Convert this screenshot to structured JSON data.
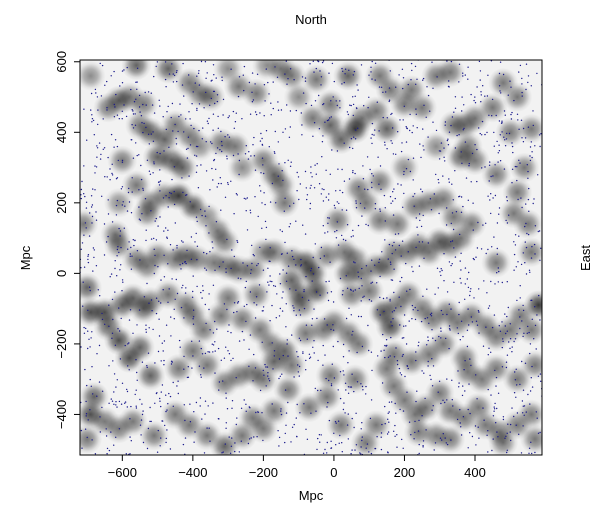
{
  "chart_data": {
    "type": "scatter",
    "title": "North",
    "right_label": "East",
    "xlabel": "Mpc",
    "ylabel": "Mpc",
    "xlim": [
      -720,
      590
    ],
    "ylim": [
      -515,
      605
    ],
    "xticks": [
      -600,
      -400,
      -200,
      0,
      200,
      400
    ],
    "yticks": [
      -400,
      -200,
      0,
      200,
      400,
      600
    ],
    "grid": false,
    "colors": {
      "points": "#1a1a8c",
      "smoothing": "#000000",
      "background": "#f2f2f2"
    },
    "clusters": [
      {
        "x": -690,
        "y": 560,
        "w": 0.5
      },
      {
        "x": -640,
        "y": 470,
        "w": 0.6
      },
      {
        "x": -610,
        "y": 490,
        "w": 0.7
      },
      {
        "x": -580,
        "y": 500,
        "w": 0.6
      },
      {
        "x": -560,
        "y": 590,
        "w": 0.7
      },
      {
        "x": -540,
        "y": 480,
        "w": 0.6
      },
      {
        "x": -550,
        "y": 420,
        "w": 0.6
      },
      {
        "x": -470,
        "y": 580,
        "w": 0.7
      },
      {
        "x": -410,
        "y": 540,
        "w": 0.6
      },
      {
        "x": -380,
        "y": 510,
        "w": 0.6
      },
      {
        "x": -350,
        "y": 500,
        "w": 0.6
      },
      {
        "x": -300,
        "y": 580,
        "w": 0.5
      },
      {
        "x": -270,
        "y": 530,
        "w": 0.6
      },
      {
        "x": -220,
        "y": 510,
        "w": 0.6
      },
      {
        "x": -190,
        "y": 590,
        "w": 0.5
      },
      {
        "x": -150,
        "y": 580,
        "w": 0.6
      },
      {
        "x": -120,
        "y": 560,
        "w": 0.6
      },
      {
        "x": -100,
        "y": 500,
        "w": 0.5
      },
      {
        "x": -50,
        "y": 550,
        "w": 0.6
      },
      {
        "x": -60,
        "y": 440,
        "w": 0.6
      },
      {
        "x": -10,
        "y": 480,
        "w": 0.6
      },
      {
        "x": -10,
        "y": 420,
        "w": 0.7
      },
      {
        "x": 20,
        "y": 380,
        "w": 0.7
      },
      {
        "x": 40,
        "y": 560,
        "w": 0.7
      },
      {
        "x": 80,
        "y": 440,
        "w": 0.6
      },
      {
        "x": 60,
        "y": 410,
        "w": 0.9
      },
      {
        "x": 130,
        "y": 560,
        "w": 0.6
      },
      {
        "x": 120,
        "y": 460,
        "w": 0.6
      },
      {
        "x": 150,
        "y": 410,
        "w": 0.7
      },
      {
        "x": 160,
        "y": 520,
        "w": 0.6
      },
      {
        "x": 200,
        "y": 480,
        "w": 0.6
      },
      {
        "x": 220,
        "y": 520,
        "w": 0.6
      },
      {
        "x": 250,
        "y": 470,
        "w": 0.6
      },
      {
        "x": 290,
        "y": 560,
        "w": 0.6
      },
      {
        "x": 330,
        "y": 570,
        "w": 0.6
      },
      {
        "x": 340,
        "y": 420,
        "w": 0.6
      },
      {
        "x": 370,
        "y": 420,
        "w": 0.6
      },
      {
        "x": 400,
        "y": 440,
        "w": 0.6
      },
      {
        "x": 450,
        "y": 470,
        "w": 0.6
      },
      {
        "x": 480,
        "y": 540,
        "w": 0.6
      },
      {
        "x": 520,
        "y": 500,
        "w": 0.6
      },
      {
        "x": 560,
        "y": 410,
        "w": 0.6
      },
      {
        "x": 500,
        "y": 400,
        "w": 0.6
      },
      {
        "x": 540,
        "y": 300,
        "w": 0.6
      },
      {
        "x": -520,
        "y": 400,
        "w": 0.7
      },
      {
        "x": -480,
        "y": 380,
        "w": 0.7
      },
      {
        "x": -450,
        "y": 420,
        "w": 0.6
      },
      {
        "x": -410,
        "y": 390,
        "w": 0.6
      },
      {
        "x": -600,
        "y": 320,
        "w": 0.6
      },
      {
        "x": -560,
        "y": 250,
        "w": 0.6
      },
      {
        "x": -500,
        "y": 330,
        "w": 0.7
      },
      {
        "x": -460,
        "y": 320,
        "w": 0.7
      },
      {
        "x": -430,
        "y": 300,
        "w": 0.7
      },
      {
        "x": -380,
        "y": 360,
        "w": 0.5
      },
      {
        "x": -320,
        "y": 370,
        "w": 0.6
      },
      {
        "x": -280,
        "y": 360,
        "w": 0.6
      },
      {
        "x": -260,
        "y": 300,
        "w": 0.5
      },
      {
        "x": -200,
        "y": 320,
        "w": 0.6
      },
      {
        "x": -170,
        "y": 280,
        "w": 0.7
      },
      {
        "x": -150,
        "y": 250,
        "w": 0.6
      },
      {
        "x": -140,
        "y": 200,
        "w": 0.6
      },
      {
        "x": -520,
        "y": 200,
        "w": 0.6
      },
      {
        "x": -480,
        "y": 220,
        "w": 0.6
      },
      {
        "x": -440,
        "y": 220,
        "w": 0.9
      },
      {
        "x": -400,
        "y": 190,
        "w": 0.8
      },
      {
        "x": -530,
        "y": 170,
        "w": 0.6
      },
      {
        "x": -360,
        "y": 160,
        "w": 0.5
      },
      {
        "x": -330,
        "y": 120,
        "w": 0.6
      },
      {
        "x": -310,
        "y": 90,
        "w": 0.6
      },
      {
        "x": -710,
        "y": 140,
        "w": 0.6
      },
      {
        "x": -620,
        "y": 110,
        "w": 0.6
      },
      {
        "x": -610,
        "y": 80,
        "w": 0.6
      },
      {
        "x": -560,
        "y": 40,
        "w": 0.6
      },
      {
        "x": -530,
        "y": 20,
        "w": 0.6
      },
      {
        "x": -500,
        "y": 50,
        "w": 0.6
      },
      {
        "x": -450,
        "y": 40,
        "w": 0.6
      },
      {
        "x": -420,
        "y": 50,
        "w": 0.6
      },
      {
        "x": -390,
        "y": 40,
        "w": 0.6
      },
      {
        "x": -340,
        "y": 30,
        "w": 0.6
      },
      {
        "x": -300,
        "y": 20,
        "w": 0.6
      },
      {
        "x": -270,
        "y": 10,
        "w": 0.6
      },
      {
        "x": -230,
        "y": 10,
        "w": 0.6
      },
      {
        "x": -200,
        "y": 60,
        "w": 0.5
      },
      {
        "x": -170,
        "y": 60,
        "w": 0.6
      },
      {
        "x": -120,
        "y": 40,
        "w": 0.6
      },
      {
        "x": -80,
        "y": 30,
        "w": 0.8
      },
      {
        "x": -60,
        "y": 0,
        "w": 0.8
      },
      {
        "x": -50,
        "y": -50,
        "w": 0.8
      },
      {
        "x": -100,
        "y": -60,
        "w": 0.7
      },
      {
        "x": -20,
        "y": 50,
        "w": 0.6
      },
      {
        "x": 30,
        "y": 60,
        "w": 0.6
      },
      {
        "x": 60,
        "y": 40,
        "w": 0.6
      },
      {
        "x": 40,
        "y": 0,
        "w": 0.7
      },
      {
        "x": 80,
        "y": 0,
        "w": 0.6
      },
      {
        "x": 120,
        "y": 20,
        "w": 0.6
      },
      {
        "x": 150,
        "y": 20,
        "w": 0.6
      },
      {
        "x": 170,
        "y": 60,
        "w": 0.6
      },
      {
        "x": 210,
        "y": 60,
        "w": 0.6
      },
      {
        "x": 240,
        "y": 80,
        "w": 0.6
      },
      {
        "x": 270,
        "y": 60,
        "w": 0.6
      },
      {
        "x": 300,
        "y": 90,
        "w": 0.7
      },
      {
        "x": 330,
        "y": 80,
        "w": 0.6
      },
      {
        "x": 360,
        "y": 100,
        "w": 0.6
      },
      {
        "x": 390,
        "y": 140,
        "w": 0.6
      },
      {
        "x": 340,
        "y": 160,
        "w": 0.6
      },
      {
        "x": 310,
        "y": 210,
        "w": 0.6
      },
      {
        "x": 270,
        "y": 200,
        "w": 0.6
      },
      {
        "x": 230,
        "y": 190,
        "w": 0.6
      },
      {
        "x": 180,
        "y": 140,
        "w": 0.6
      },
      {
        "x": 130,
        "y": 150,
        "w": 0.6
      },
      {
        "x": 90,
        "y": 200,
        "w": 0.6
      },
      {
        "x": 70,
        "y": 240,
        "w": 0.6
      },
      {
        "x": 10,
        "y": 150,
        "w": 0.6
      },
      {
        "x": 460,
        "y": 280,
        "w": 0.6
      },
      {
        "x": 400,
        "y": 320,
        "w": 0.6
      },
      {
        "x": 380,
        "y": 360,
        "w": 0.6
      },
      {
        "x": 360,
        "y": 330,
        "w": 0.7
      },
      {
        "x": 520,
        "y": 230,
        "w": 0.6
      },
      {
        "x": 510,
        "y": 170,
        "w": 0.6
      },
      {
        "x": 550,
        "y": 140,
        "w": 0.6
      },
      {
        "x": 560,
        "y": 60,
        "w": 0.6
      },
      {
        "x": 460,
        "y": 30,
        "w": 0.6
      },
      {
        "x": -700,
        "y": -40,
        "w": 0.7
      },
      {
        "x": -690,
        "y": -110,
        "w": 0.8
      },
      {
        "x": -650,
        "y": -110,
        "w": 0.8
      },
      {
        "x": -600,
        "y": -90,
        "w": 0.7
      },
      {
        "x": -570,
        "y": -70,
        "w": 0.7
      },
      {
        "x": -540,
        "y": -100,
        "w": 0.7
      },
      {
        "x": -520,
        "y": -80,
        "w": 0.6
      },
      {
        "x": -640,
        "y": -150,
        "w": 0.7
      },
      {
        "x": -610,
        "y": -190,
        "w": 0.8
      },
      {
        "x": -580,
        "y": -240,
        "w": 0.8
      },
      {
        "x": -550,
        "y": -210,
        "w": 0.7
      },
      {
        "x": -470,
        "y": -60,
        "w": 0.6
      },
      {
        "x": -400,
        "y": -120,
        "w": 0.6
      },
      {
        "x": -370,
        "y": -160,
        "w": 0.6
      },
      {
        "x": -320,
        "y": -120,
        "w": 0.6
      },
      {
        "x": -300,
        "y": -70,
        "w": 0.6
      },
      {
        "x": -260,
        "y": -130,
        "w": 0.6
      },
      {
        "x": -210,
        "y": -160,
        "w": 0.6
      },
      {
        "x": -180,
        "y": -200,
        "w": 0.6
      },
      {
        "x": -140,
        "y": -220,
        "w": 0.7
      },
      {
        "x": -120,
        "y": -260,
        "w": 0.6
      },
      {
        "x": -170,
        "y": -250,
        "w": 0.7
      },
      {
        "x": -200,
        "y": -300,
        "w": 0.6
      },
      {
        "x": -230,
        "y": -280,
        "w": 0.6
      },
      {
        "x": -270,
        "y": -290,
        "w": 0.6
      },
      {
        "x": -310,
        "y": -310,
        "w": 0.6
      },
      {
        "x": -360,
        "y": -260,
        "w": 0.6
      },
      {
        "x": -400,
        "y": -220,
        "w": 0.6
      },
      {
        "x": -520,
        "y": -290,
        "w": 0.7
      },
      {
        "x": -440,
        "y": -270,
        "w": 0.6
      },
      {
        "x": -80,
        "y": -170,
        "w": 0.6
      },
      {
        "x": -30,
        "y": -160,
        "w": 0.6
      },
      {
        "x": 0,
        "y": -140,
        "w": 0.6
      },
      {
        "x": 40,
        "y": -170,
        "w": 0.6
      },
      {
        "x": 70,
        "y": -200,
        "w": 0.6
      },
      {
        "x": 140,
        "y": -110,
        "w": 0.8
      },
      {
        "x": 160,
        "y": -150,
        "w": 0.8
      },
      {
        "x": 180,
        "y": -90,
        "w": 0.6
      },
      {
        "x": 210,
        "y": -60,
        "w": 0.6
      },
      {
        "x": 250,
        "y": -100,
        "w": 0.6
      },
      {
        "x": 280,
        "y": -130,
        "w": 0.6
      },
      {
        "x": 320,
        "y": -110,
        "w": 0.6
      },
      {
        "x": 350,
        "y": -140,
        "w": 0.6
      },
      {
        "x": 390,
        "y": -120,
        "w": 0.6
      },
      {
        "x": 430,
        "y": -150,
        "w": 0.6
      },
      {
        "x": 460,
        "y": -180,
        "w": 0.6
      },
      {
        "x": 500,
        "y": -160,
        "w": 0.6
      },
      {
        "x": 530,
        "y": -120,
        "w": 0.6
      },
      {
        "x": 580,
        "y": -90,
        "w": 0.9
      },
      {
        "x": 560,
        "y": -160,
        "w": 0.6
      },
      {
        "x": 570,
        "y": -260,
        "w": 0.6
      },
      {
        "x": 520,
        "y": -300,
        "w": 0.6
      },
      {
        "x": 460,
        "y": -270,
        "w": 0.6
      },
      {
        "x": 420,
        "y": -300,
        "w": 0.6
      },
      {
        "x": 380,
        "y": -280,
        "w": 0.6
      },
      {
        "x": 370,
        "y": -240,
        "w": 0.6
      },
      {
        "x": 310,
        "y": -200,
        "w": 0.6
      },
      {
        "x": 270,
        "y": -230,
        "w": 0.6
      },
      {
        "x": 220,
        "y": -250,
        "w": 0.6
      },
      {
        "x": 170,
        "y": -230,
        "w": 0.6
      },
      {
        "x": 150,
        "y": -270,
        "w": 0.6
      },
      {
        "x": 170,
        "y": -320,
        "w": 0.6
      },
      {
        "x": 200,
        "y": -360,
        "w": 0.6
      },
      {
        "x": 230,
        "y": -400,
        "w": 0.6
      },
      {
        "x": 260,
        "y": -380,
        "w": 0.6
      },
      {
        "x": 300,
        "y": -340,
        "w": 0.6
      },
      {
        "x": 330,
        "y": -390,
        "w": 0.6
      },
      {
        "x": 370,
        "y": -410,
        "w": 0.6
      },
      {
        "x": 410,
        "y": -380,
        "w": 0.6
      },
      {
        "x": 430,
        "y": -430,
        "w": 0.6
      },
      {
        "x": 470,
        "y": -450,
        "w": 0.6
      },
      {
        "x": 520,
        "y": -430,
        "w": 0.6
      },
      {
        "x": 560,
        "y": -400,
        "w": 0.6
      },
      {
        "x": 570,
        "y": -470,
        "w": 0.6
      },
      {
        "x": 480,
        "y": -480,
        "w": 0.6
      },
      {
        "x": 330,
        "y": -470,
        "w": 0.6
      },
      {
        "x": 290,
        "y": -460,
        "w": 0.6
      },
      {
        "x": 240,
        "y": -450,
        "w": 0.6
      },
      {
        "x": 120,
        "y": -430,
        "w": 0.6
      },
      {
        "x": 90,
        "y": -480,
        "w": 0.6
      },
      {
        "x": 20,
        "y": -430,
        "w": 0.6
      },
      {
        "x": -20,
        "y": -350,
        "w": 0.6
      },
      {
        "x": -70,
        "y": -380,
        "w": 0.6
      },
      {
        "x": -130,
        "y": -330,
        "w": 0.6
      },
      {
        "x": -170,
        "y": -390,
        "w": 0.6
      },
      {
        "x": -200,
        "y": -440,
        "w": 0.6
      },
      {
        "x": -230,
        "y": -410,
        "w": 0.6
      },
      {
        "x": -260,
        "y": -460,
        "w": 0.6
      },
      {
        "x": -310,
        "y": -490,
        "w": 0.7
      },
      {
        "x": -360,
        "y": -460,
        "w": 0.6
      },
      {
        "x": -410,
        "y": -430,
        "w": 0.6
      },
      {
        "x": -450,
        "y": -400,
        "w": 0.6
      },
      {
        "x": -510,
        "y": -460,
        "w": 0.6
      },
      {
        "x": -570,
        "y": -420,
        "w": 0.6
      },
      {
        "x": -610,
        "y": -440,
        "w": 0.6
      },
      {
        "x": -650,
        "y": -420,
        "w": 0.6
      },
      {
        "x": -690,
        "y": -400,
        "w": 0.8
      },
      {
        "x": -680,
        "y": -350,
        "w": 0.7
      },
      {
        "x": -700,
        "y": -470,
        "w": 0.6
      },
      {
        "x": -120,
        "y": -20,
        "w": 0.7
      },
      {
        "x": -90,
        "y": -90,
        "w": 0.6
      },
      {
        "x": 50,
        "y": -60,
        "w": 0.6
      },
      {
        "x": 100,
        "y": -50,
        "w": 0.6
      },
      {
        "x": -10,
        "y": -290,
        "w": 0.6
      },
      {
        "x": 60,
        "y": -300,
        "w": 0.6
      },
      {
        "x": -220,
        "y": -60,
        "w": 0.6
      },
      {
        "x": -420,
        "y": -90,
        "w": 0.6
      },
      {
        "x": -610,
        "y": 200,
        "w": 0.5
      },
      {
        "x": 130,
        "y": 260,
        "w": 0.6
      },
      {
        "x": 200,
        "y": 300,
        "w": 0.5
      },
      {
        "x": 290,
        "y": 360,
        "w": 0.5
      }
    ]
  }
}
